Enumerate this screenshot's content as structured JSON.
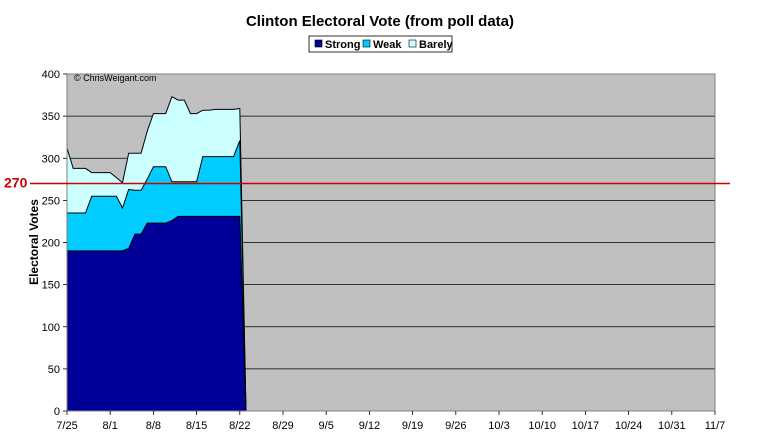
{
  "chart_data": {
    "type": "area",
    "title": "Clinton Electoral Vote (from poll data)",
    "xlabel": "",
    "ylabel": "Electoral Votes",
    "ylim": [
      0,
      400
    ],
    "yticks": [
      0,
      50,
      100,
      150,
      200,
      250,
      300,
      350,
      400
    ],
    "xlim": [
      "7/25",
      "11/7"
    ],
    "xticks": [
      "7/25",
      "8/1",
      "8/8",
      "8/15",
      "8/22",
      "8/29",
      "9/5",
      "9/12",
      "9/19",
      "9/26",
      "10/3",
      "10/10",
      "10/17",
      "10/24",
      "10/31",
      "11/7"
    ],
    "stacked": true,
    "grid": true,
    "legend_position": "top-center",
    "background": "#c0c0c0",
    "annotation": "© ChrisWeigant.com",
    "reference_line": {
      "value": 270,
      "label": "270",
      "color": "#cc0000"
    },
    "x": [
      "7/25",
      "7/26",
      "7/27",
      "7/28",
      "7/29",
      "7/30",
      "7/31",
      "8/1",
      "8/2",
      "8/3",
      "8/4",
      "8/5",
      "8/6",
      "8/7",
      "8/8",
      "8/9",
      "8/10",
      "8/11",
      "8/12",
      "8/13",
      "8/14",
      "8/15",
      "8/16",
      "8/17",
      "8/18",
      "8/19",
      "8/20",
      "8/21",
      "8/22",
      "8/23"
    ],
    "series": [
      {
        "name": "Strong",
        "color": "#000099",
        "values": [
          190,
          190,
          190,
          190,
          190,
          190,
          190,
          190,
          190,
          190,
          193,
          210,
          210,
          223,
          223,
          223,
          223,
          226,
          231,
          231,
          231,
          231,
          231,
          231,
          231,
          231,
          231,
          231,
          231,
          0
        ]
      },
      {
        "name": "Weak",
        "color": "#00ccff",
        "values": [
          45,
          45,
          45,
          45,
          65,
          65,
          65,
          65,
          65,
          51,
          70,
          52,
          52,
          52,
          67,
          67,
          67,
          46,
          41,
          41,
          41,
          41,
          71,
          71,
          71,
          71,
          71,
          71,
          90,
          0
        ]
      },
      {
        "name": "Barely",
        "color": "#ccffff",
        "values": [
          77,
          53,
          53,
          53,
          28,
          28,
          28,
          28,
          22,
          30,
          43,
          44,
          44,
          57,
          63,
          63,
          63,
          101,
          97,
          97,
          81,
          81,
          55,
          55,
          56,
          56,
          56,
          56,
          38,
          0
        ]
      }
    ]
  }
}
